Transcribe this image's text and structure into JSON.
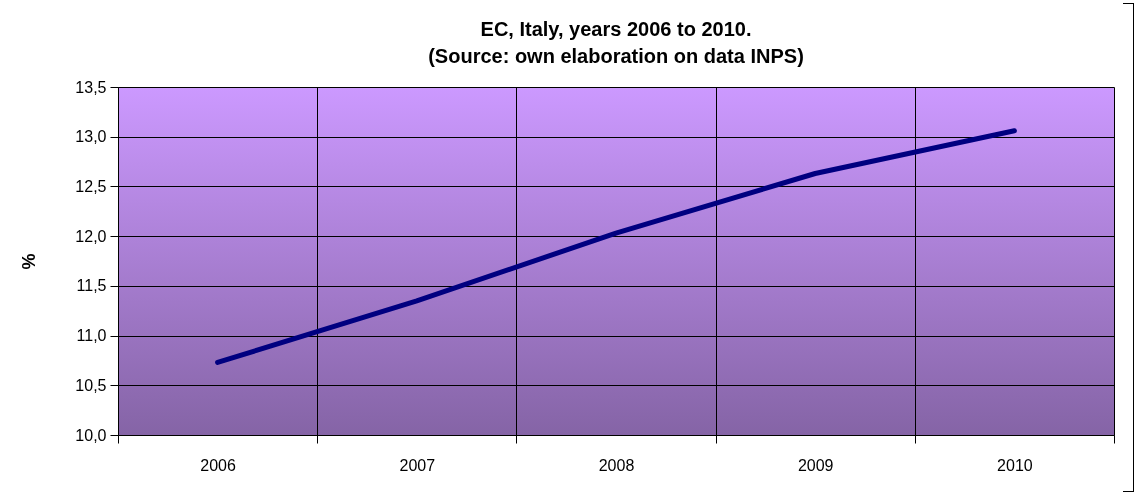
{
  "chart_data": {
    "type": "line",
    "title": "EC, Italy, years 2006 to 2010.\n(Source: own elaboration on data INPS)",
    "ylabel": "%",
    "categories": [
      "2006",
      "2007",
      "2008",
      "2009",
      "2010"
    ],
    "series": [
      {
        "color": "#000080",
        "values": [
          10.73,
          11.35,
          12.03,
          12.63,
          13.06
        ]
      }
    ],
    "ylim": [
      10.0,
      13.5
    ],
    "yticks": [
      {
        "value": 10.0,
        "label": "10,0"
      },
      {
        "value": 10.5,
        "label": "10,5"
      },
      {
        "value": 11.0,
        "label": "11,0"
      },
      {
        "value": 11.5,
        "label": "11,5"
      },
      {
        "value": 12.0,
        "label": "12,0"
      },
      {
        "value": 12.5,
        "label": "12,5"
      },
      {
        "value": 13.0,
        "label": "13,0"
      },
      {
        "value": 13.5,
        "label": "13,5"
      }
    ],
    "grid": true
  }
}
